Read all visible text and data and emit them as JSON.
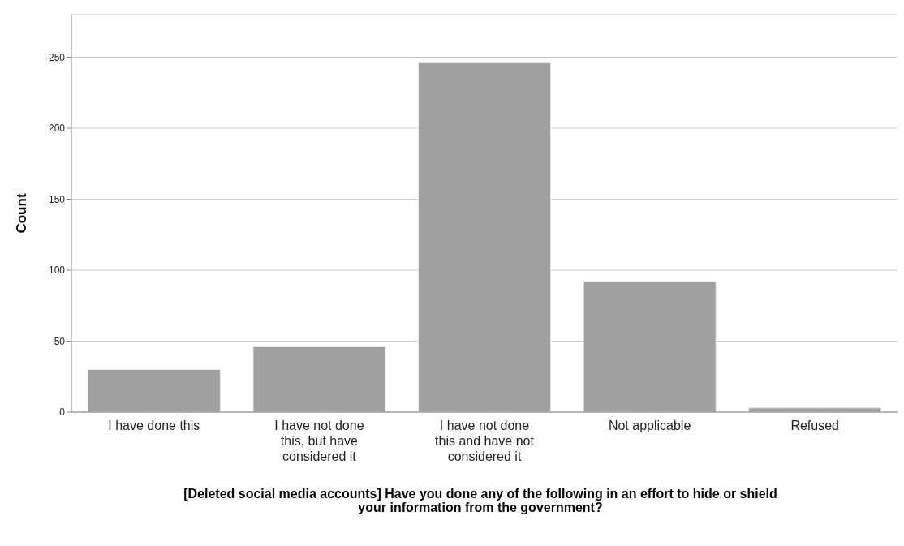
{
  "chart_data": {
    "type": "bar",
    "xlabel": "[Deleted social media accounts] Have you done any of the following in an effort to hide or shield your information from the government?",
    "ylabel": "Count",
    "categories": [
      "I have done this",
      "I have not done this, but have considered it",
      "I have not done this and have not considered it",
      "Not applicable",
      "Refused"
    ],
    "values": [
      30,
      46,
      246,
      92,
      3
    ],
    "color": "#a0a0a0",
    "ylim": [
      0,
      280
    ],
    "yticks": [
      0,
      50,
      100,
      150,
      200,
      250
    ],
    "grid": "y"
  }
}
